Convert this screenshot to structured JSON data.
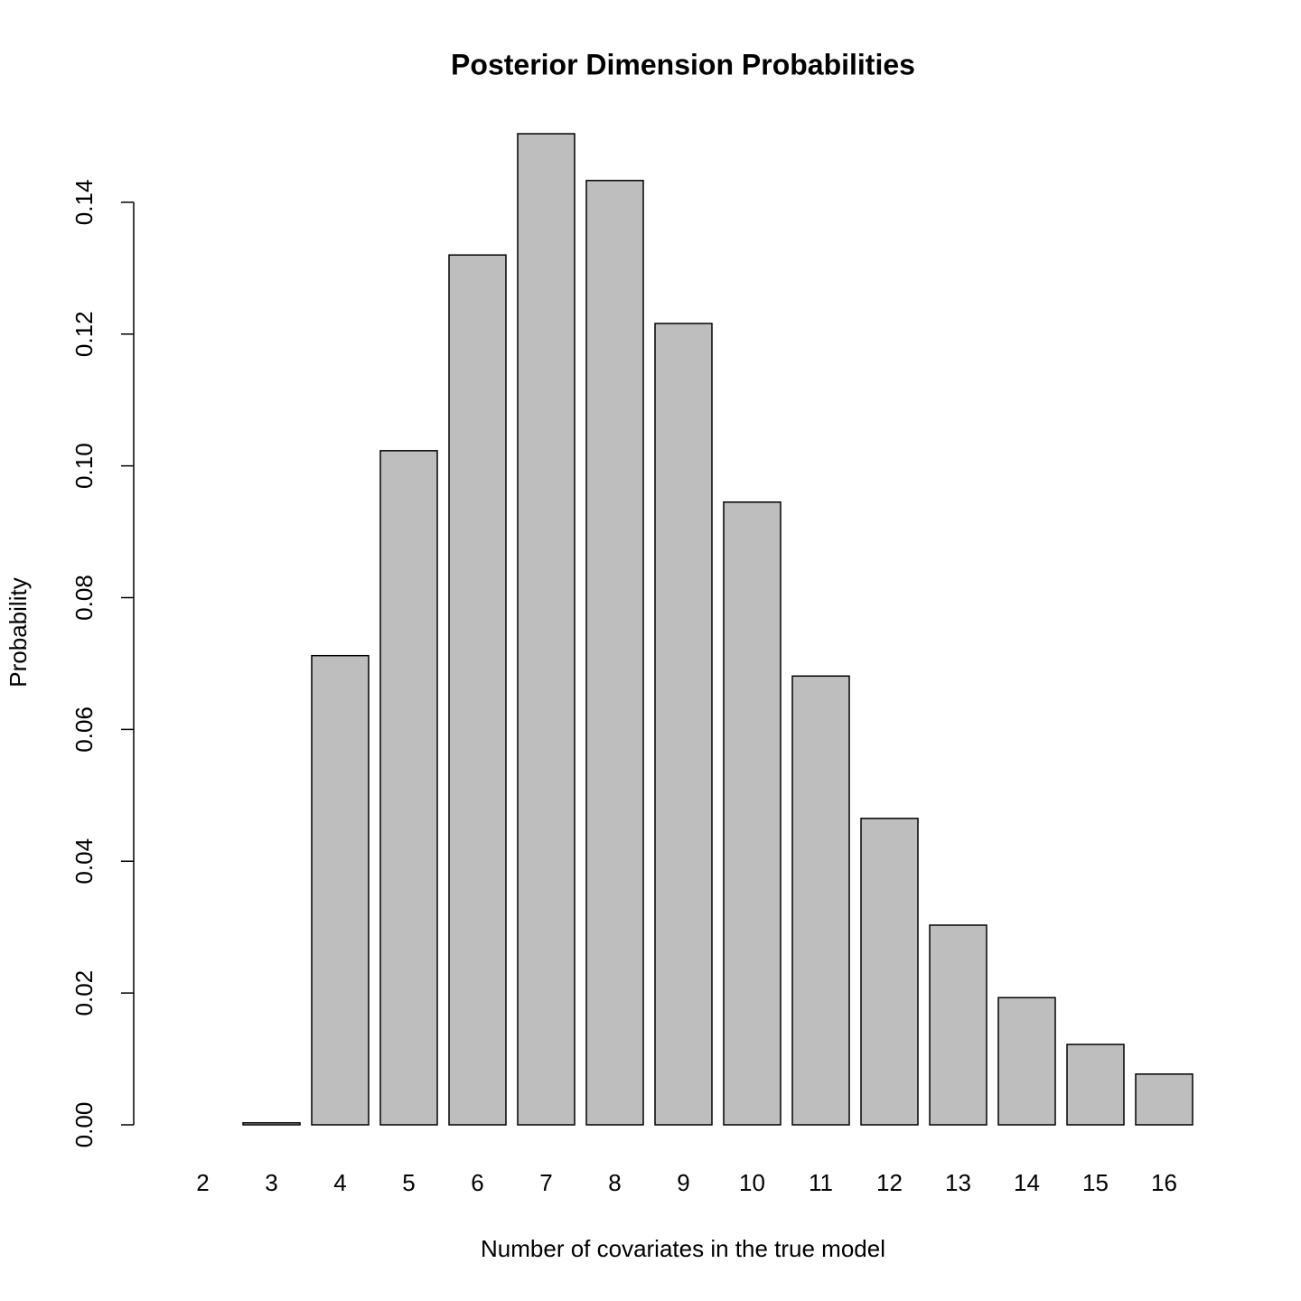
{
  "chart_data": {
    "type": "bar",
    "title": "Posterior Dimension Probabilities",
    "x_label": "Number of covariates in the true model",
    "y_label": "Probability",
    "categories": [
      "2",
      "3",
      "4",
      "5",
      "6",
      "7",
      "8",
      "9",
      "10",
      "11",
      "12",
      "13",
      "14",
      "15",
      "16"
    ],
    "values": [
      0.0,
      0.0003,
      0.0712,
      0.1023,
      0.132,
      0.1504,
      0.1433,
      0.1216,
      0.0945,
      0.0681,
      0.0465,
      0.0303,
      0.0193,
      0.0122,
      0.0077
    ],
    "color": "#bebebe",
    "ylim": [
      0,
      0.16
    ],
    "yticks": [
      {
        "value": 0,
        "label": "0.00"
      },
      {
        "value": 0.02,
        "label": "0.02"
      },
      {
        "value": 0.04,
        "label": "0.04"
      },
      {
        "value": 0.06,
        "label": "0.06"
      },
      {
        "value": 0.08,
        "label": "0.08"
      },
      {
        "value": 0.1,
        "label": "0.10"
      },
      {
        "value": 0.12,
        "label": "0.12"
      },
      {
        "value": 0.14,
        "label": "0.14"
      }
    ],
    "grid": false
  }
}
